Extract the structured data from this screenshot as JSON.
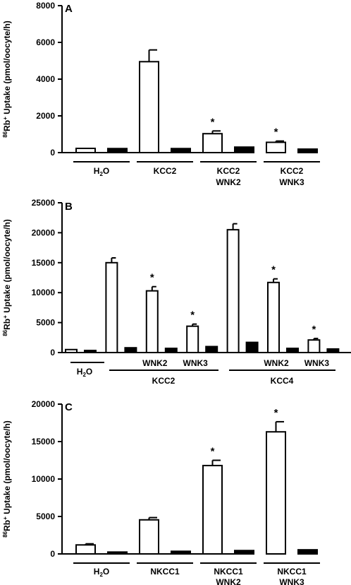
{
  "chart_data": [
    {
      "panel": "A",
      "type": "bar",
      "ylabel_sup": "86",
      "ylabel_main": "Rb",
      "ylabel_sup2": "+",
      "ylabel_rest": " Uptake (pmol/oocyte/h)",
      "ylim": [
        0,
        8000
      ],
      "yticks": [
        0,
        2000,
        4000,
        6000,
        8000
      ],
      "ytick_labels": [
        "0",
        "2000",
        "4000",
        "6000",
        "8000"
      ],
      "series": [
        {
          "name": "",
          "fill": "#ffffff",
          "values": [
            230,
            4950,
            1030,
            560
          ]
        },
        {
          "name": "",
          "fill": "#000000",
          "values": [
            220,
            220,
            300,
            190
          ]
        }
      ],
      "errors": [
        [
          0,
          0,
          0,
          0
        ],
        [
          0,
          0,
          0,
          0
        ]
      ],
      "errors_top": [
        [
          0,
          640,
          150,
          70
        ],
        [
          0,
          0,
          0,
          0
        ]
      ],
      "stars": [
        [
          false,
          false,
          true,
          true
        ],
        [
          false,
          false,
          false,
          false
        ]
      ],
      "groups": [
        {
          "line1": "H",
          "sub": "2",
          "line1b": "O",
          "line2": ""
        },
        {
          "line1": "KCC2",
          "sub": "",
          "line1b": "",
          "line2": ""
        },
        {
          "line1": "KCC2",
          "sub": "",
          "line1b": "",
          "line2": "WNK2"
        },
        {
          "line1": "KCC2",
          "sub": "",
          "line1b": "",
          "line2": "WNK3"
        }
      ],
      "star_symbol": "*"
    },
    {
      "panel": "B",
      "type": "bar",
      "ylabel_sup": "86",
      "ylabel_main": "Rb",
      "ylabel_sup2": "+",
      "ylabel_rest": " Uptake (pmol/oocyte/h)",
      "ylim": [
        0,
        25000
      ],
      "yticks": [
        0,
        5000,
        10000,
        15000,
        20000,
        25000
      ],
      "ytick_labels": [
        "0",
        "5000",
        "10000",
        "15000",
        "20000",
        "25000"
      ],
      "series": [
        {
          "name": "",
          "fill": "#ffffff",
          "values": [
            500,
            15000,
            10300,
            4400,
            20500,
            11700,
            2100
          ]
        },
        {
          "name": "",
          "fill": "#000000",
          "values": [
            350,
            800,
            700,
            1000,
            1700,
            700,
            600
          ]
        }
      ],
      "errors_top": [
        [
          0,
          800,
          700,
          350,
          1000,
          600,
          250
        ],
        [
          0,
          0,
          0,
          0,
          0,
          0,
          0
        ]
      ],
      "stars": [
        [
          false,
          false,
          true,
          true,
          false,
          true,
          true
        ],
        [
          false,
          false,
          false,
          false,
          false,
          false,
          false
        ]
      ],
      "sub_labels": [
        "",
        "",
        "WNK2",
        "WNK3",
        "",
        "WNK2",
        "WNK3"
      ],
      "h2o": {
        "line1": "H",
        "sub": "2",
        "line1b": "O"
      },
      "bracket_labels": [
        "KCC2",
        "KCC4"
      ],
      "star_symbol": "*"
    },
    {
      "panel": "C",
      "type": "bar",
      "ylabel_sup": "86",
      "ylabel_main": "Rb",
      "ylabel_sup2": "+",
      "ylabel_rest": " Uptake (pmol/oocyte/h)",
      "ylim": [
        0,
        20000
      ],
      "yticks": [
        0,
        5000,
        10000,
        15000,
        20000
      ],
      "ytick_labels": [
        "0",
        "5000",
        "10000",
        "15000",
        "20000"
      ],
      "series": [
        {
          "name": "",
          "fill": "#ffffff",
          "values": [
            1200,
            4550,
            11800,
            16300
          ]
        },
        {
          "name": "",
          "fill": "#000000",
          "values": [
            250,
            350,
            450,
            550
          ]
        }
      ],
      "errors_top": [
        [
          150,
          300,
          700,
          1350
        ],
        [
          0,
          0,
          0,
          0
        ]
      ],
      "stars": [
        [
          false,
          false,
          true,
          true
        ],
        [
          false,
          false,
          false,
          false
        ]
      ],
      "groups": [
        {
          "line1": "H",
          "sub": "2",
          "line1b": "O",
          "line2": ""
        },
        {
          "line1": "NKCC1",
          "sub": "",
          "line1b": "",
          "line2": ""
        },
        {
          "line1": "NKCC1",
          "sub": "",
          "line1b": "",
          "line2": "WNK2"
        },
        {
          "line1": "NKCC1",
          "sub": "",
          "line1b": "",
          "line2": "WNK3"
        }
      ],
      "star_symbol": "*"
    }
  ]
}
